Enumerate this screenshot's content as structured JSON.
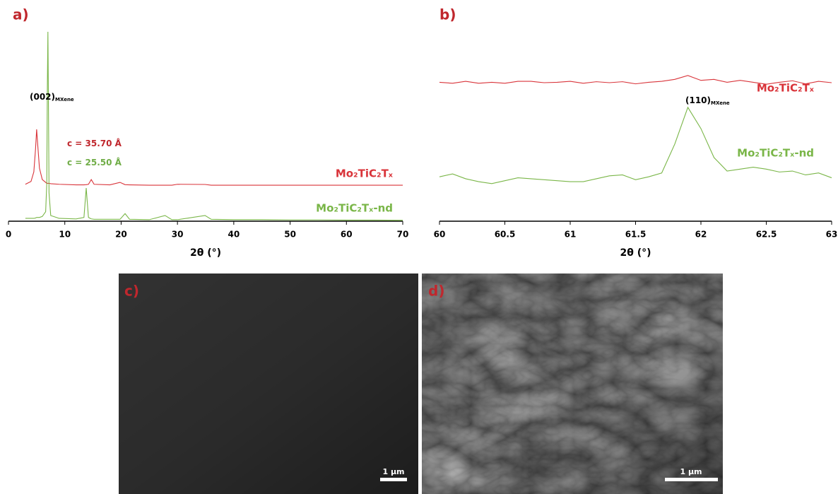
{
  "chart_data": [
    {
      "type": "line",
      "panel_label": "a)",
      "xlabel": "2θ (°)",
      "x": [
        3,
        4,
        4.5,
        4.8,
        5,
        5.2,
        5.5,
        6,
        6.6,
        6.8,
        6.9,
        7,
        7.1,
        7.2,
        7.5,
        9,
        12,
        13.4,
        13.8,
        14.2,
        14.7,
        15.2,
        18,
        19.8,
        20.7,
        21.5,
        25,
        27.8,
        29,
        30,
        34.9,
        36,
        40,
        45,
        50,
        55,
        60,
        65,
        70
      ],
      "series": [
        {
          "name": "Mo₂TiC₂Tₓ",
          "color": "#d9343a",
          "values": [
            19.5,
            21,
            26,
            38,
            48.5,
            40,
            28,
            22,
            20.5,
            20,
            20,
            20,
            20,
            20,
            19.8,
            19.5,
            19.2,
            19.2,
            19.3,
            19.5,
            22,
            19.5,
            19.2,
            20.5,
            19.3,
            19.2,
            19,
            19,
            19,
            19.5,
            19.4,
            19,
            19,
            19,
            19,
            19,
            19,
            19,
            19
          ]
        },
        {
          "name": "Mo₂TiC₂Tₓ-nd",
          "color": "#7ab648",
          "values": [
            1.5,
            1.5,
            1.5,
            1.7,
            2,
            2,
            2,
            2.5,
            5,
            20,
            70,
            100,
            60,
            15,
            3,
            1.5,
            1.2,
            2,
            17.5,
            2,
            1.2,
            1,
            1,
            1,
            4,
            1,
            0.8,
            3,
            0.8,
            0.8,
            3,
            1,
            0.8,
            0.8,
            0.7,
            0.7,
            0.6,
            0.6,
            0.5
          ]
        }
      ],
      "annotations": [
        {
          "text": "(002)",
          "subscript": "MXene"
        },
        {
          "text": "c = 35.70 Å",
          "color": "#c0272d"
        },
        {
          "text": "c = 25.50 Å",
          "color": "#70ad47"
        }
      ],
      "xlim": [
        0,
        70
      ],
      "xticks": [
        0,
        10,
        20,
        30,
        40,
        50,
        60,
        70
      ],
      "ylim": [
        0,
        100
      ]
    },
    {
      "type": "line",
      "panel_label": "b)",
      "xlabel": "2θ (°)",
      "x": [
        60,
        60.1,
        60.2,
        60.3,
        60.4,
        60.5,
        60.6,
        60.7,
        60.8,
        60.9,
        61,
        61.1,
        61.2,
        61.3,
        61.4,
        61.5,
        61.6,
        61.7,
        61.8,
        61.9,
        62,
        62.1,
        62.2,
        62.3,
        62.4,
        62.5,
        62.6,
        62.7,
        62.8,
        62.9,
        63
      ],
      "series": [
        {
          "name": "Mo₂TiC₂Tₓ",
          "color": "#d9343a",
          "values": [
            72,
            71.5,
            72.5,
            71.5,
            72,
            71.5,
            72.5,
            72.5,
            71.8,
            72,
            72.5,
            71.5,
            72.3,
            71.8,
            72.3,
            71.2,
            72,
            72.5,
            73.5,
            75.5,
            73,
            73.5,
            72,
            73,
            72,
            71,
            72,
            72.8,
            71.2,
            72.5,
            71.8
          ]
        },
        {
          "name": "Mo₂TiC₂Tₓ-nd",
          "color": "#7ab648",
          "values": [
            23,
            24.5,
            22,
            20.5,
            19.5,
            21,
            22.5,
            22,
            21.5,
            21,
            20.5,
            20.5,
            22,
            23.5,
            24,
            21.5,
            23,
            25,
            40,
            59,
            48,
            33,
            26,
            27,
            28,
            27,
            25.5,
            26,
            24,
            25,
            22.5
          ]
        }
      ],
      "annotations": [
        {
          "text": "(110)",
          "subscript": "MXene"
        }
      ],
      "xlim": [
        60,
        63
      ],
      "xticks": [
        60,
        60.5,
        61,
        61.5,
        62,
        62.5,
        63
      ],
      "ylim": [
        0,
        100
      ]
    }
  ],
  "images": [
    {
      "label": "c)",
      "scale_bar": "1 µm"
    },
    {
      "label": "d)",
      "scale_bar": "1 µm"
    }
  ]
}
